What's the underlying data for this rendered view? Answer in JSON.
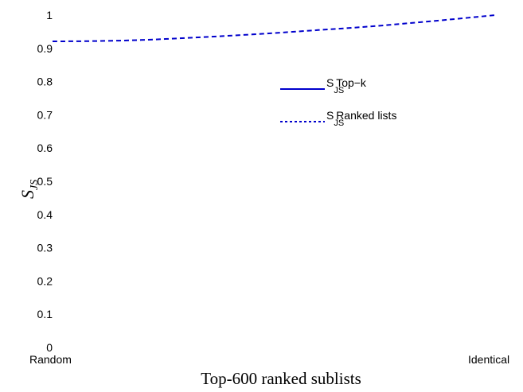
{
  "chart_data": {
    "type": "line",
    "title": "",
    "xlabel": "Top-600  ranked sublists",
    "ylabel": "S_JS",
    "ylabel_main": "S",
    "ylabel_sub": "JS",
    "x_tick_labels": [
      "Random",
      "Identical"
    ],
    "y_ticks": [
      0,
      0.1,
      0.2,
      0.3,
      0.4,
      0.5,
      0.6,
      0.7,
      0.8,
      0.9,
      1
    ],
    "y_tick_labels": [
      "0",
      "0.1",
      "0.2",
      "0.3",
      "0.4",
      "0.5",
      "0.6",
      "0.7",
      "0.8",
      "0.9",
      "1"
    ],
    "ylim": [
      0,
      1
    ],
    "xlim": [
      0,
      1
    ],
    "grid": false,
    "legend_position": "upper-middle",
    "series": [
      {
        "name": "S_JS Top-k",
        "legend_main": "S",
        "legend_sub": "JS",
        "legend_rest": "Top−k",
        "style": "solid",
        "color": "#0000cc",
        "x": [],
        "y": []
      },
      {
        "name": "S_JS Ranked lists",
        "legend_main": "S",
        "legend_sub": "JS",
        "legend_rest": "Ranked lists",
        "style": "dashed",
        "color": "#0000cc",
        "x": [
          0,
          0.1,
          0.2,
          0.3,
          0.4,
          0.5,
          0.6,
          0.7,
          0.8,
          0.9,
          1
        ],
        "y": [
          0.921,
          0.922,
          0.925,
          0.931,
          0.938,
          0.946,
          0.955,
          0.964,
          0.975,
          0.987,
          1.0
        ]
      }
    ]
  }
}
